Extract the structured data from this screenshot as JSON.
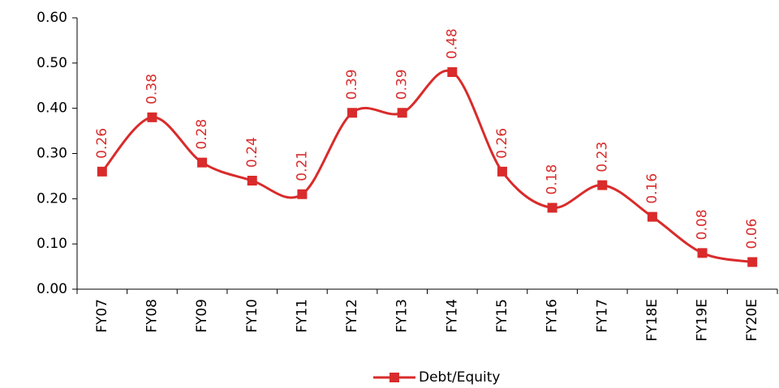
{
  "chart_data": {
    "type": "line",
    "categories": [
      "FY07",
      "FY08",
      "FY09",
      "FY10",
      "FY11",
      "FY12",
      "FY13",
      "FY14",
      "FY15",
      "FY16",
      "FY17",
      "FY18E",
      "FY19E",
      "FY20E"
    ],
    "series": [
      {
        "name": "Debt/Equity",
        "color": "#d92b2b",
        "values": [
          0.26,
          0.38,
          0.28,
          0.24,
          0.21,
          0.39,
          0.39,
          0.48,
          0.26,
          0.18,
          0.23,
          0.16,
          0.08,
          0.06
        ]
      }
    ],
    "ylim": [
      0,
      0.6
    ],
    "yticks": [
      {
        "value": 0,
        "label": "0.00"
      },
      {
        "value": 0.1,
        "label": "0.10"
      },
      {
        "value": 0.2,
        "label": "0.20"
      },
      {
        "value": 0.3,
        "label": "0.30"
      },
      {
        "value": 0.4,
        "label": "0.40"
      },
      {
        "value": 0.5,
        "label": "0.50"
      },
      {
        "value": 0.6,
        "label": "0.60"
      }
    ],
    "legend": "bottom"
  }
}
